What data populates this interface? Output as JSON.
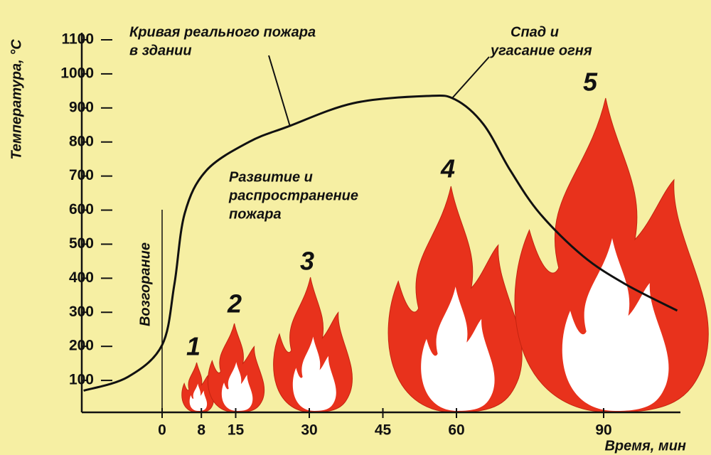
{
  "chart_data": {
    "type": "line",
    "x_label": "Время, мин",
    "y_label": "Температура, °С",
    "xlim": [
      -16,
      106
    ],
    "ylim": [
      0,
      1100
    ],
    "xticks": [
      0,
      8,
      15,
      30,
      45,
      60,
      90
    ],
    "yticks": [
      100,
      200,
      300,
      400,
      500,
      600,
      700,
      800,
      900,
      1000,
      1100
    ],
    "series": [
      {
        "name": "Кривая реального пожара в здании",
        "color": "#111111",
        "x": [
          -16,
          -7,
          0,
          2.5,
          4.6,
          9,
          17.7,
          25.6,
          39,
          54,
          59.7,
          65.5,
          71,
          77,
          85.8,
          94.5,
          105
        ],
        "values": [
          70,
          110,
          204,
          382,
          590,
          716,
          800,
          845,
          914,
          935,
          925,
          852,
          716,
          590,
          465,
          382,
          305
        ]
      }
    ],
    "annotations": {
      "curve": [
        "Кривая реального пожара",
        "в здании"
      ],
      "decline": [
        "Спад и",
        "угасание огня"
      ],
      "growth": [
        "Развитие и",
        "распространение",
        "пожара"
      ],
      "ignition": "Возгорание"
    },
    "stages": [
      "1",
      "2",
      "3",
      "4",
      "5"
    ]
  }
}
